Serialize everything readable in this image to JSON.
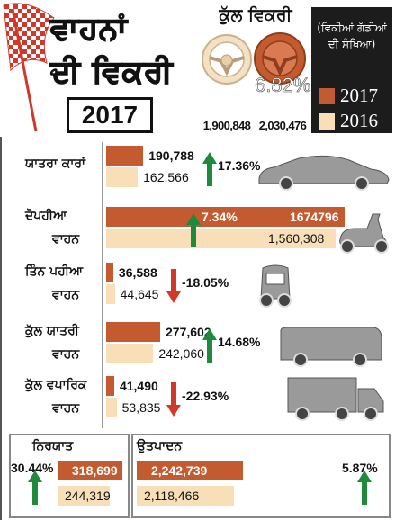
{
  "header": {
    "title_line1": "ਵਾਹਨਾਂ",
    "title_line2": "ਦੀ ਵਿਕਰੀ",
    "year": "2017",
    "total_label": "ਕੁੱਲ ਵਿਕਰੀ",
    "total_2016": "1,900,848",
    "total_2017": "2,030,476",
    "total_change": "6.82%"
  },
  "legend": {
    "title": "(ਵਿਕੀਆਂ ਗੱਡੀਆਂ ਦੀ ਸੰਖਿਆ)",
    "items": [
      {
        "label": "2017",
        "color": "#c45a2f"
      },
      {
        "label": "2016",
        "color": "#f9dfb8"
      }
    ]
  },
  "colors": {
    "series_2017": "#c45a2f",
    "series_2016": "#f9dfb8",
    "up_arrow": "#1e8a3c",
    "down_arrow": "#d2382a"
  },
  "chart_data": {
    "type": "bar",
    "series": [
      {
        "name": "2017"
      },
      {
        "name": "2016"
      }
    ],
    "rows": [
      {
        "key": "passenger_cars",
        "label_line1": "ਯਾਤਰਾ ਕਾਰਾਂ",
        "label_line2": "",
        "v2017": 190788,
        "v2016": 162566,
        "t2017": "190,788",
        "t2016": "162,566",
        "change": "17.36%",
        "direction": "up",
        "icon": "car-icon"
      },
      {
        "key": "two_wheelers",
        "label_line1": "ਦੋਪਹੀਆ",
        "label_line2": "ਵਾਹਨ",
        "v2017": 1674796,
        "v2016": 1560308,
        "t2017": "1674796",
        "t2016": "1,560,308",
        "change": "7.34%",
        "direction": "up",
        "icon": "scooter-icon"
      },
      {
        "key": "three_wheelers",
        "label_line1": "ਤਿੰਨ ਪਹੀਆ",
        "label_line2": "ਵਾਹਨ",
        "v2017": 36588,
        "v2016": 44645,
        "t2017": "36,588",
        "t2016": "44,645",
        "change": "-18.05%",
        "direction": "down",
        "icon": "auto-rickshaw-icon"
      },
      {
        "key": "total_passenger",
        "label_line1": "ਕੁੱਲ ਯਾਤਰੀ",
        "label_line2": "ਵਾਹਨ",
        "v2017": 277602,
        "v2016": 242060,
        "t2017": "277,602",
        "t2016": "242,060",
        "change": "14.68%",
        "direction": "up",
        "icon": "bus-icon"
      },
      {
        "key": "total_commercial",
        "label_line1": "ਕੁੱਲ ਵਪਾਰਿਕ",
        "label_line2": "ਵਾਹਨ",
        "v2017": 41490,
        "v2016": 53835,
        "t2017": "41,490",
        "t2016": "53,835",
        "change": "-22.93%",
        "direction": "down",
        "icon": "truck-icon"
      }
    ],
    "boxes": [
      {
        "key": "exports",
        "label": "ਨਿਰਯਾਤ",
        "v2017": 318699,
        "v2016": 244319,
        "t2017": "318,699",
        "t2016": "244,319",
        "change": "30.44%",
        "direction": "up"
      },
      {
        "key": "production",
        "label": "ਉਤਪਾਦਨ",
        "v2017": 2242739,
        "v2016": 2118466,
        "t2017": "2,242,739",
        "t2016": "2,118,466",
        "change": "5.87%",
        "direction": "up"
      }
    ]
  }
}
